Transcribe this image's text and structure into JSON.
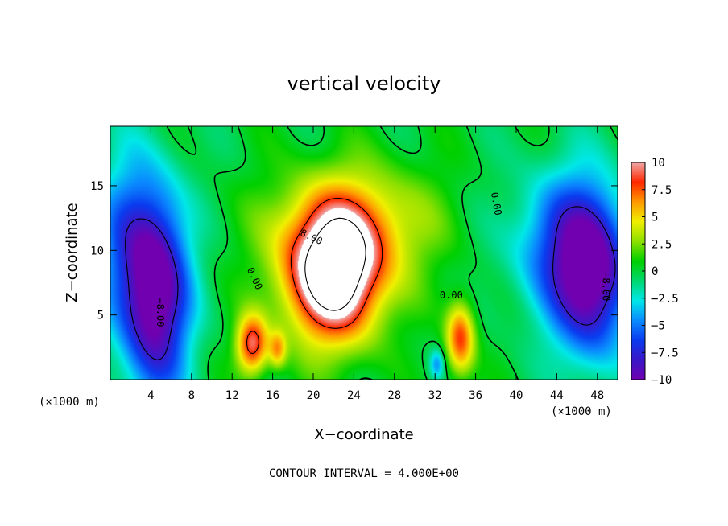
{
  "chart_data": {
    "type": "heatmap",
    "title": "vertical velocity",
    "xlabel": "X−coordinate",
    "ylabel": "Z−coordinate",
    "x_unit_left": "(×1000 m)",
    "x_unit_right": "(×1000 m)",
    "footer": "CONTOUR INTERVAL = 4.000E+00",
    "xlim": [
      0,
      50
    ],
    "ylim": [
      0,
      19.6
    ],
    "x_ticks": [
      4,
      8,
      12,
      16,
      20,
      24,
      28,
      32,
      36,
      40,
      44,
      48
    ],
    "x_tick_labels": [
      "4",
      "8",
      "12",
      "16",
      "20",
      "24",
      "28",
      "32",
      "36",
      "40",
      "44",
      "48"
    ],
    "y_ticks": [
      5,
      10,
      15
    ],
    "y_tick_labels": [
      "5",
      "10",
      "15"
    ],
    "colorbar": {
      "min": -10,
      "max": 10,
      "ticks": [
        10,
        7.5,
        5,
        2.5,
        0,
        -2.5,
        -5,
        -7.5,
        -10
      ],
      "tick_labels": [
        "10",
        "7.5",
        "5",
        "2.5",
        "0",
        "−2.5",
        "−5",
        "−7.5",
        "−10"
      ]
    },
    "features": [
      {
        "kind": "updraft",
        "x": 22,
        "z": 8,
        "peak": 14,
        "sx": 3.4,
        "sz": 3.6
      },
      {
        "kind": "updraft",
        "x": 24,
        "z": 12,
        "peak": 5,
        "sx": 5.5,
        "sz": 3.2
      },
      {
        "kind": "updraft",
        "x": 14,
        "z": 2.7,
        "peak": 9,
        "sx": 1.1,
        "sz": 1.6
      },
      {
        "kind": "updraft",
        "x": 16.5,
        "z": 2.3,
        "peak": 5,
        "sx": 0.6,
        "sz": 1.0
      },
      {
        "kind": "updraft",
        "x": 34.5,
        "z": 3.2,
        "peak": 8,
        "sx": 1.0,
        "sz": 2.0
      },
      {
        "kind": "downdraft",
        "x": 4.5,
        "z": 6.5,
        "peak": -11,
        "sx": 2.3,
        "sz": 5.5
      },
      {
        "kind": "downdraft",
        "x": 47.5,
        "z": 8,
        "peak": -10,
        "sx": 2.6,
        "sz": 4.5
      },
      {
        "kind": "downdraft",
        "x": 44,
        "z": 10.5,
        "peak": -5,
        "sx": 3.5,
        "sz": 4.0
      },
      {
        "kind": "downdraft",
        "x": 1.5,
        "z": 11,
        "peak": -4,
        "sx": 2.5,
        "sz": 5.0
      },
      {
        "kind": "downdraft",
        "x": 32.2,
        "z": 1.2,
        "peak": -4,
        "sx": 0.5,
        "sz": 0.8
      }
    ],
    "contour_levels": [
      -8,
      0,
      8,
      12
    ],
    "contour_labels": [
      {
        "text": "8.00",
        "x": 19.8,
        "z": 11.0,
        "angle": 25
      },
      {
        "text": "0.00",
        "x": 14.2,
        "z": 7.8,
        "angle": 65
      },
      {
        "text": "0.00",
        "x": 33.6,
        "z": 6.5,
        "angle": 0
      },
      {
        "text": "0.00",
        "x": 38.0,
        "z": 13.6,
        "angle": 80
      },
      {
        "text": "−8.00",
        "x": 4.9,
        "z": 5.2,
        "angle": 90
      },
      {
        "text": "−8.00",
        "x": 48.8,
        "z": 7.2,
        "angle": 90
      }
    ],
    "grid": false
  },
  "colors": {
    "colormap": [
      "#7000b0",
      "#3a18c8",
      "#0a3cf0",
      "#0a8cff",
      "#00e8e8",
      "#00d870",
      "#00d000",
      "#8ee000",
      "#f0f000",
      "#ff9a00",
      "#ff2800",
      "#f0a8a8"
    ],
    "contour_line": "#000000",
    "background": "#ffffff"
  }
}
